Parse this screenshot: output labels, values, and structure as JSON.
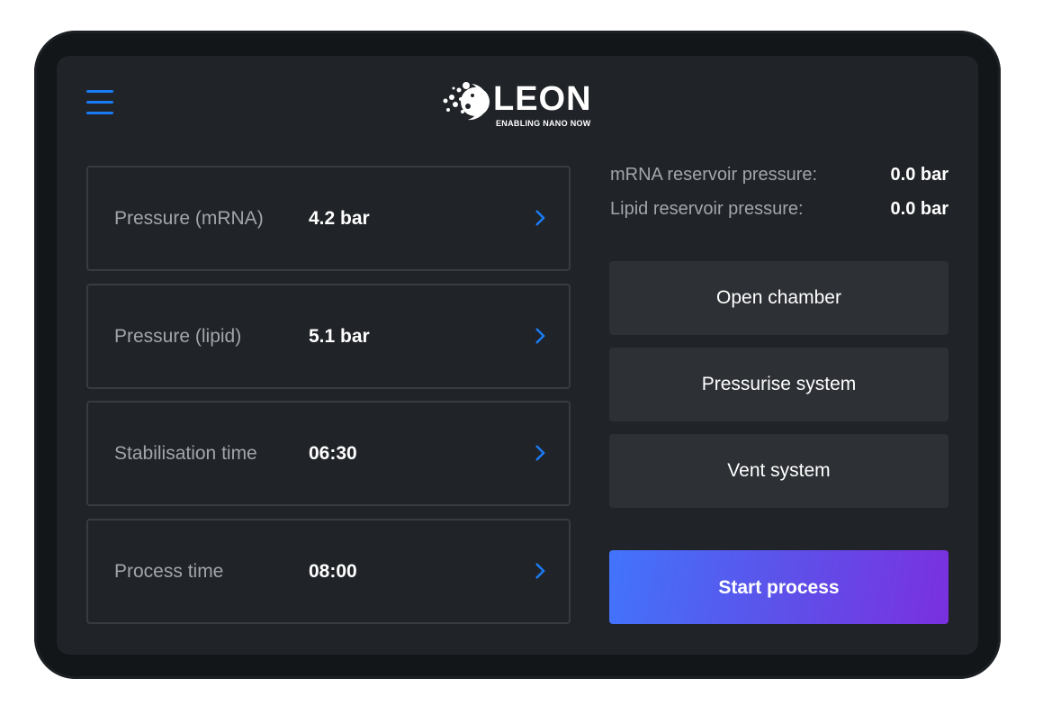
{
  "brand": {
    "name": "LEON",
    "tagline": "ENABLING NANO NOW"
  },
  "colors": {
    "accent": "#1a7cf5",
    "gradient_start": "#4274fb",
    "gradient_end": "#7a30df",
    "background": "#202327"
  },
  "settings": [
    {
      "label": "Pressure (mRNA)",
      "value": "4.2 bar",
      "icon": "chevron-right-icon"
    },
    {
      "label": "Pressure (lipid)",
      "value": "5.1 bar",
      "icon": "chevron-right-icon"
    },
    {
      "label": "Stabilisation time",
      "value": "06:30",
      "icon": "chevron-right-icon"
    },
    {
      "label": "Process time",
      "value": "08:00",
      "icon": "chevron-right-icon"
    }
  ],
  "status": [
    {
      "label": "mRNA reservoir pressure:",
      "value": "0.0 bar"
    },
    {
      "label": "Lipid reservoir pressure:",
      "value": "0.0 bar"
    }
  ],
  "actions": {
    "open_chamber": "Open chamber",
    "pressurise": "Pressurise system",
    "vent": "Vent system",
    "start": "Start process"
  }
}
